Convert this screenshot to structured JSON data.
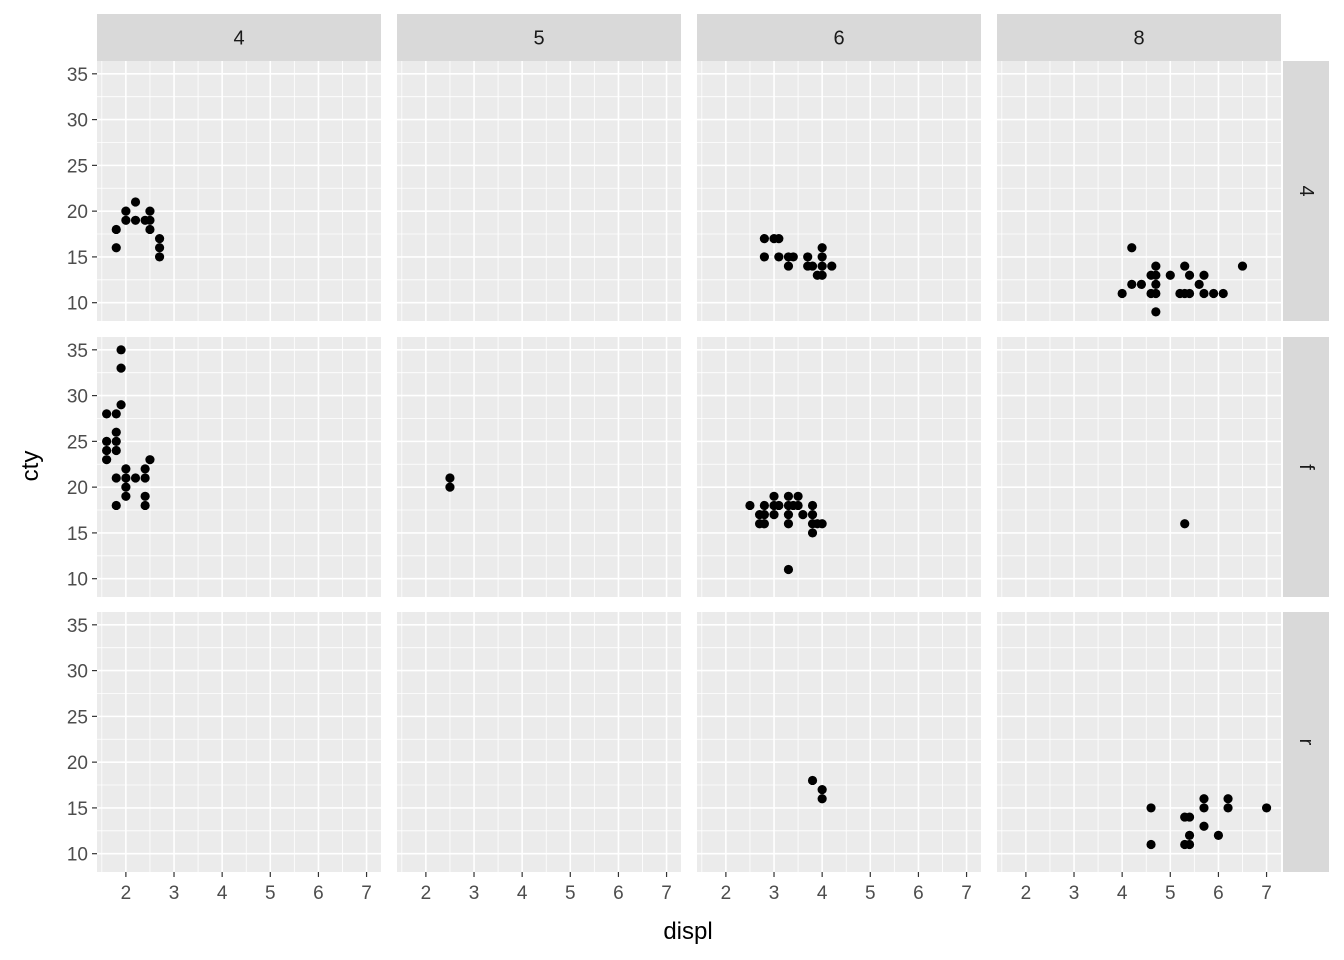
{
  "chart_data": {
    "type": "scatter",
    "facet_cols": [
      "4",
      "5",
      "6",
      "8"
    ],
    "facet_rows": [
      "4",
      "f",
      "r"
    ],
    "xlabel": "displ",
    "ylabel": "cty",
    "xlim": [
      1.4,
      7.3
    ],
    "ylim": [
      8.0,
      36.4
    ],
    "x_ticks": [
      2,
      3,
      4,
      5,
      6,
      7
    ],
    "y_ticks": [
      10,
      15,
      20,
      25,
      30,
      35
    ],
    "grid": true,
    "colors": {
      "panel_bg": "#EBEBEB",
      "strip_bg": "#D9D9D9",
      "grid": "#FFFFFF",
      "point": "#000000",
      "tick": "#333333"
    },
    "panels": [
      {
        "row": "4",
        "col": "4",
        "points": [
          [
            1.8,
            16
          ],
          [
            1.8,
            18
          ],
          [
            2.0,
            20
          ],
          [
            2.0,
            19
          ],
          [
            2.2,
            21
          ],
          [
            2.2,
            19
          ],
          [
            2.4,
            19
          ],
          [
            2.5,
            20
          ],
          [
            2.5,
            19
          ],
          [
            2.5,
            18
          ],
          [
            2.7,
            17
          ],
          [
            2.7,
            16
          ],
          [
            2.7,
            15
          ]
        ]
      },
      {
        "row": "4",
        "col": "5",
        "points": []
      },
      {
        "row": "4",
        "col": "6",
        "points": [
          [
            2.8,
            17
          ],
          [
            2.8,
            15
          ],
          [
            3.0,
            17
          ],
          [
            3.1,
            17
          ],
          [
            3.1,
            15
          ],
          [
            3.3,
            15
          ],
          [
            3.3,
            14
          ],
          [
            3.4,
            15
          ],
          [
            3.7,
            15
          ],
          [
            3.7,
            14
          ],
          [
            3.8,
            14
          ],
          [
            3.9,
            13
          ],
          [
            4.0,
            16
          ],
          [
            4.0,
            15
          ],
          [
            4.0,
            14
          ],
          [
            4.0,
            13
          ],
          [
            4.2,
            14
          ]
        ]
      },
      {
        "row": "4",
        "col": "8",
        "points": [
          [
            4.0,
            11
          ],
          [
            4.2,
            12
          ],
          [
            4.2,
            16
          ],
          [
            4.4,
            12
          ],
          [
            4.6,
            13
          ],
          [
            4.6,
            11
          ],
          [
            4.7,
            14
          ],
          [
            4.7,
            13
          ],
          [
            4.7,
            12
          ],
          [
            4.7,
            11
          ],
          [
            4.7,
            9
          ],
          [
            5.0,
            13
          ],
          [
            5.2,
            11
          ],
          [
            5.3,
            14
          ],
          [
            5.3,
            11
          ],
          [
            5.4,
            13
          ],
          [
            5.4,
            11
          ],
          [
            5.6,
            12
          ],
          [
            5.7,
            13
          ],
          [
            5.7,
            11
          ],
          [
            5.9,
            11
          ],
          [
            6.1,
            11
          ],
          [
            6.5,
            14
          ]
        ]
      },
      {
        "row": "f",
        "col": "4",
        "points": [
          [
            1.6,
            28
          ],
          [
            1.6,
            25
          ],
          [
            1.6,
            24
          ],
          [
            1.6,
            23
          ],
          [
            1.8,
            28
          ],
          [
            1.8,
            26
          ],
          [
            1.8,
            25
          ],
          [
            1.8,
            24
          ],
          [
            1.8,
            21
          ],
          [
            1.8,
            18
          ],
          [
            1.9,
            35
          ],
          [
            1.9,
            33
          ],
          [
            1.9,
            29
          ],
          [
            2.0,
            22
          ],
          [
            2.0,
            21
          ],
          [
            2.0,
            20
          ],
          [
            2.0,
            19
          ],
          [
            2.2,
            21
          ],
          [
            2.4,
            22
          ],
          [
            2.4,
            21
          ],
          [
            2.4,
            19
          ],
          [
            2.4,
            18
          ],
          [
            2.5,
            23
          ]
        ]
      },
      {
        "row": "f",
        "col": "5",
        "points": [
          [
            2.5,
            21
          ],
          [
            2.5,
            20
          ]
        ]
      },
      {
        "row": "f",
        "col": "6",
        "points": [
          [
            2.5,
            18
          ],
          [
            2.7,
            17
          ],
          [
            2.7,
            16
          ],
          [
            2.8,
            18
          ],
          [
            2.8,
            17
          ],
          [
            2.8,
            16
          ],
          [
            3.0,
            19
          ],
          [
            3.0,
            18
          ],
          [
            3.0,
            17
          ],
          [
            3.1,
            18
          ],
          [
            3.3,
            19
          ],
          [
            3.3,
            18
          ],
          [
            3.3,
            17
          ],
          [
            3.3,
            16
          ],
          [
            3.3,
            11
          ],
          [
            3.4,
            18
          ],
          [
            3.5,
            19
          ],
          [
            3.5,
            18
          ],
          [
            3.6,
            17
          ],
          [
            3.8,
            18
          ],
          [
            3.8,
            17
          ],
          [
            3.8,
            16
          ],
          [
            3.8,
            15
          ],
          [
            3.9,
            16
          ],
          [
            4.0,
            16
          ]
        ]
      },
      {
        "row": "f",
        "col": "8",
        "points": [
          [
            5.3,
            16
          ]
        ]
      },
      {
        "row": "r",
        "col": "4",
        "points": []
      },
      {
        "row": "r",
        "col": "5",
        "points": []
      },
      {
        "row": "r",
        "col": "6",
        "points": [
          [
            3.8,
            18
          ],
          [
            4.0,
            17
          ],
          [
            4.0,
            16
          ]
        ]
      },
      {
        "row": "r",
        "col": "8",
        "points": [
          [
            4.6,
            15
          ],
          [
            4.6,
            11
          ],
          [
            5.3,
            14
          ],
          [
            5.3,
            11
          ],
          [
            5.4,
            14
          ],
          [
            5.4,
            12
          ],
          [
            5.4,
            11
          ],
          [
            5.7,
            16
          ],
          [
            5.7,
            15
          ],
          [
            5.7,
            13
          ],
          [
            6.0,
            12
          ],
          [
            6.2,
            16
          ],
          [
            6.2,
            15
          ],
          [
            7.0,
            15
          ]
        ]
      }
    ]
  }
}
